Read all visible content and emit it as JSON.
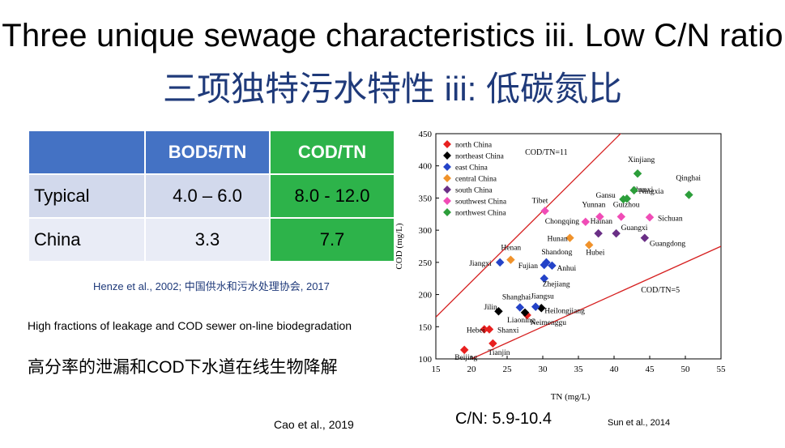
{
  "slide": {
    "title_en": "Three unique sewage characteristics iii. Low C/N ratio",
    "title_cn": "三项独特污水特性 iii: 低碳氮比",
    "note_en": "High fractions of leakage and COD sewer on-line biodegradation",
    "note_cn": "高分率的泄漏和COD下水道在线生物降解",
    "ref_table": "Henze et al., 2002; 中国供水和污水处理协会, 2017",
    "ref_cao": "Cao et al., 2019",
    "ref_sun": "Sun et al., 2014",
    "cn_range": "C/N: 5.9-10.4"
  },
  "table": {
    "headers": [
      "",
      "BOD5/TN",
      "COD/TN"
    ],
    "rows": [
      {
        "label": "Typical",
        "bod": "4.0 – 6.0",
        "cod": "8.0 - 12.0"
      },
      {
        "label": "China",
        "bod": "3.3",
        "cod": "7.7"
      }
    ],
    "colors": {
      "header_blue": "#4472c4",
      "cod_green": "#2db34a",
      "row1": "#d2d9ec",
      "row2": "#e9ecf6"
    }
  },
  "chart_data": {
    "type": "scatter",
    "xlabel": "TN (mg/L)",
    "ylabel": "COD (mg/L)",
    "xlim": [
      15,
      55
    ],
    "ylim": [
      100,
      450
    ],
    "xticks": [
      15,
      20,
      25,
      30,
      35,
      40,
      45,
      50,
      55
    ],
    "yticks": [
      100,
      150,
      200,
      250,
      300,
      350,
      400,
      450
    ],
    "reference_lines": [
      {
        "label": "COD/TN=11",
        "slope": 11,
        "color": "#d62020"
      },
      {
        "label": "COD/TN=5",
        "slope": 5,
        "color": "#d62020"
      }
    ],
    "series": [
      {
        "name": "north China",
        "color": "#e8201f",
        "points": [
          {
            "label": "Beijing",
            "x": 19,
            "y": 114
          },
          {
            "label": "Hebei",
            "x": 21.8,
            "y": 146
          },
          {
            "label": "Shanxi",
            "x": 22.5,
            "y": 146
          },
          {
            "label": "Tianjin",
            "x": 23,
            "y": 124
          },
          {
            "label": "Neimenggu",
            "x": 27.8,
            "y": 168
          }
        ]
      },
      {
        "name": "northeast China",
        "color": "#000000",
        "points": [
          {
            "label": "Jilin",
            "x": 23.8,
            "y": 174
          },
          {
            "label": "Liaoning",
            "x": 27.5,
            "y": 172
          },
          {
            "label": "Heilongjiang",
            "x": 29.8,
            "y": 179
          }
        ]
      },
      {
        "name": "east China",
        "color": "#2443c8",
        "points": [
          {
            "label": "Shanghai",
            "x": 26.8,
            "y": 180
          },
          {
            "label": "Jiangsu",
            "x": 29,
            "y": 181
          },
          {
            "label": "Jiangxi",
            "x": 24,
            "y": 250
          },
          {
            "label": "Shandong",
            "x": 30.5,
            "y": 250
          },
          {
            "label": "Anhui",
            "x": 31.3,
            "y": 245
          },
          {
            "label": "Fujian",
            "x": 30.2,
            "y": 246
          },
          {
            "label": "Zhejiang",
            "x": 30.2,
            "y": 225
          }
        ]
      },
      {
        "name": "central China",
        "color": "#f0922b",
        "points": [
          {
            "label": "Henan",
            "x": 25.5,
            "y": 254
          },
          {
            "label": "Hunan",
            "x": 33.8,
            "y": 288
          },
          {
            "label": "Hubei",
            "x": 36.5,
            "y": 277
          }
        ]
      },
      {
        "name": "south China",
        "color": "#6a2f86",
        "points": [
          {
            "label": "Hainan",
            "x": 37.8,
            "y": 295
          },
          {
            "label": "Guangxi",
            "x": 40.3,
            "y": 295
          },
          {
            "label": "Guangdong",
            "x": 44.3,
            "y": 288
          }
        ]
      },
      {
        "name": "southwest China",
        "color": "#f04cb6",
        "points": [
          {
            "label": "Tibet",
            "x": 30.3,
            "y": 330
          },
          {
            "label": "Chongqing",
            "x": 36,
            "y": 313
          },
          {
            "label": "Yunnan",
            "x": 38,
            "y": 321
          },
          {
            "label": "Guizhou",
            "x": 41,
            "y": 321
          },
          {
            "label": "Sichuan",
            "x": 45,
            "y": 320
          }
        ]
      },
      {
        "name": "northwest China",
        "color": "#2c9e3a",
        "points": [
          {
            "label": "Xinjiang",
            "x": 43.3,
            "y": 388
          },
          {
            "label": "Gansu",
            "x": 41.3,
            "y": 348
          },
          {
            "label": "Shanxi",
            "x": 41.8,
            "y": 349
          },
          {
            "label": "Ningxia",
            "x": 42.8,
            "y": 362
          },
          {
            "label": "Qinghai",
            "x": 50.5,
            "y": 355
          }
        ]
      }
    ]
  }
}
